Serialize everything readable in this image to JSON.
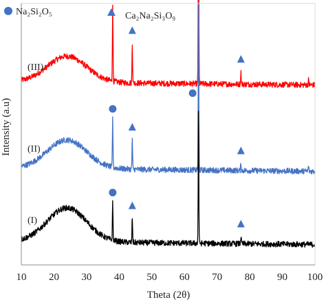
{
  "chart_data": {
    "type": "line",
    "xlabel": "Theta (2θ)",
    "ylabel": "Intensity (a.u)",
    "xlim": [
      10,
      100
    ],
    "xticks": [
      "10",
      "20",
      "30",
      "40",
      "50",
      "60",
      "70",
      "80",
      "90",
      "100"
    ],
    "legend_position": "top-left",
    "grid": false,
    "legend": [
      {
        "marker": "circle",
        "color": "#4472c4",
        "label": "Na₂Si₂O₅"
      },
      {
        "marker": "triangle",
        "color": "#4472c4",
        "label": "Ca₂Na₂Si₃O₉"
      }
    ],
    "series": [
      {
        "name": "(III)",
        "color": "#ff0000",
        "baseline": 0.7,
        "hump": {
          "center": 24,
          "height": 0.1,
          "width": 6
        },
        "peaks": [
          {
            "x": 38,
            "height": 0.3
          },
          {
            "x": 44,
            "height": 0.16
          },
          {
            "x": 64.3,
            "height": 0.82
          },
          {
            "x": 77.3,
            "height": 0.05
          },
          {
            "x": 98,
            "height": 0.02
          }
        ],
        "markers": [
          {
            "x": 38,
            "type": "circle"
          },
          {
            "x": 44,
            "type": "triangle"
          },
          {
            "x": 64.3,
            "type": "circle"
          },
          {
            "x": 77.3,
            "type": "triangle"
          }
        ]
      },
      {
        "name": "(II)",
        "color": "#4472c4",
        "baseline": 0.37,
        "hump": {
          "center": 24,
          "height": 0.11,
          "width": 6
        },
        "peaks": [
          {
            "x": 38,
            "height": 0.19
          },
          {
            "x": 44,
            "height": 0.12
          },
          {
            "x": 64.3,
            "height": 0.67
          },
          {
            "x": 77.3,
            "height": 0.03
          },
          {
            "x": 98,
            "height": 0.02
          }
        ],
        "markers": [
          {
            "x": 38,
            "type": "circle"
          },
          {
            "x": 44,
            "type": "triangle"
          },
          {
            "x": 62.5,
            "type": "circle"
          },
          {
            "x": 77.3,
            "type": "triangle"
          }
        ]
      },
      {
        "name": "(I)",
        "color": "#000000",
        "baseline": 0.09,
        "hump": {
          "center": 24,
          "height": 0.13,
          "width": 6
        },
        "peaks": [
          {
            "x": 38,
            "height": 0.15
          },
          {
            "x": 44,
            "height": 0.1
          },
          {
            "x": 64.3,
            "height": 0.53
          },
          {
            "x": 77.3,
            "height": 0.03
          }
        ],
        "markers": [
          {
            "x": 38,
            "type": "circle"
          },
          {
            "x": 44,
            "type": "triangle"
          },
          {
            "x": 62.5,
            "type": "circle"
          },
          {
            "x": 77.3,
            "type": "triangle"
          }
        ]
      }
    ]
  }
}
